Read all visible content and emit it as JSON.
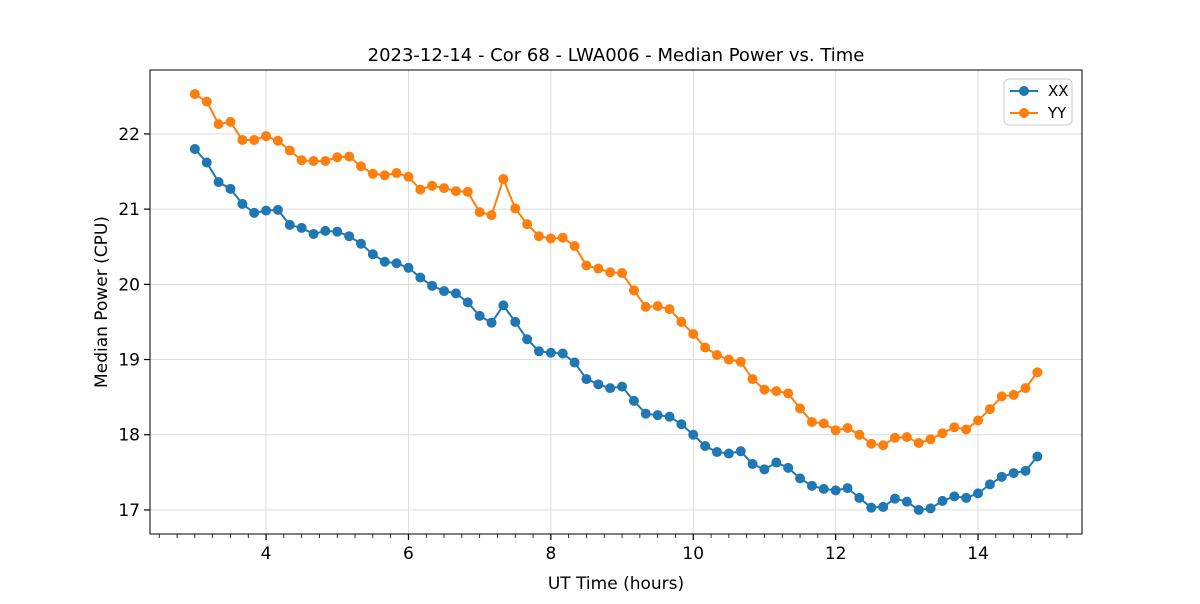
{
  "chart_data": {
    "type": "line",
    "title": "2023-12-14 - Cor 68 - LWA006 - Median Power vs. Time",
    "xlabel": "UT Time (hours)",
    "ylabel": "Median Power (CPU)",
    "xlim": [
      2.37,
      15.46
    ],
    "ylim": [
      16.68,
      22.85
    ],
    "x_major_ticks": [
      4,
      6,
      8,
      10,
      12,
      14
    ],
    "x_minor_tick_step": 0.25,
    "y_major_ticks": [
      17,
      18,
      19,
      20,
      21,
      22
    ],
    "grid": true,
    "grid_color": "#dcdcdc",
    "legend": {
      "position": "upper right",
      "entries": [
        "XX",
        "YY"
      ]
    },
    "x": [
      3.0,
      3.167,
      3.333,
      3.5,
      3.667,
      3.833,
      4.0,
      4.167,
      4.333,
      4.5,
      4.667,
      4.833,
      5.0,
      5.167,
      5.333,
      5.5,
      5.667,
      5.833,
      6.0,
      6.167,
      6.333,
      6.5,
      6.667,
      6.833,
      7.0,
      7.167,
      7.333,
      7.5,
      7.667,
      7.833,
      8.0,
      8.167,
      8.333,
      8.5,
      8.667,
      8.833,
      9.0,
      9.167,
      9.333,
      9.5,
      9.667,
      9.833,
      10.0,
      10.167,
      10.333,
      10.5,
      10.667,
      10.833,
      11.0,
      11.167,
      11.333,
      11.5,
      11.667,
      11.833,
      12.0,
      12.167,
      12.333,
      12.5,
      12.667,
      12.833,
      13.0,
      13.167,
      13.333,
      13.5,
      13.667,
      13.833,
      14.0,
      14.167,
      14.333,
      14.5,
      14.667,
      14.833
    ],
    "series": [
      {
        "name": "XX",
        "color": "#1f77b4",
        "values": [
          21.8,
          21.62,
          21.36,
          21.27,
          21.07,
          20.95,
          20.98,
          20.99,
          20.79,
          20.75,
          20.67,
          20.71,
          20.7,
          20.64,
          20.54,
          20.4,
          20.3,
          20.28,
          20.22,
          20.09,
          19.98,
          19.91,
          19.88,
          19.76,
          19.58,
          19.49,
          19.72,
          19.5,
          19.27,
          19.11,
          19.09,
          19.08,
          18.96,
          18.74,
          18.67,
          18.62,
          18.64,
          18.45,
          18.28,
          18.26,
          18.24,
          18.14,
          18.0,
          17.85,
          17.77,
          17.75,
          17.78,
          17.61,
          17.54,
          17.63,
          17.56,
          17.42,
          17.32,
          17.28,
          17.26,
          17.29,
          17.16,
          17.03,
          17.04,
          17.15,
          17.11,
          17.0,
          17.02,
          17.12,
          17.18,
          17.16,
          17.22,
          17.34,
          17.44,
          17.49,
          17.52,
          17.71
        ]
      },
      {
        "name": "YY",
        "color": "#ff7f0e",
        "values": [
          22.53,
          22.43,
          22.13,
          22.16,
          21.92,
          21.92,
          21.97,
          21.91,
          21.78,
          21.65,
          21.64,
          21.64,
          21.69,
          21.7,
          21.57,
          21.47,
          21.45,
          21.48,
          21.43,
          21.26,
          21.31,
          21.28,
          21.24,
          21.23,
          20.96,
          20.92,
          21.4,
          21.01,
          20.8,
          20.64,
          20.61,
          20.62,
          20.51,
          20.25,
          20.21,
          20.16,
          20.15,
          19.92,
          19.7,
          19.71,
          19.67,
          19.5,
          19.34,
          19.16,
          19.06,
          19.0,
          18.97,
          18.74,
          18.6,
          18.58,
          18.55,
          18.35,
          18.17,
          18.15,
          18.06,
          18.09,
          18.0,
          17.88,
          17.86,
          17.96,
          17.97,
          17.89,
          17.94,
          18.02,
          18.1,
          18.07,
          18.19,
          18.34,
          18.51,
          18.53,
          18.62,
          18.83
        ]
      }
    ]
  }
}
